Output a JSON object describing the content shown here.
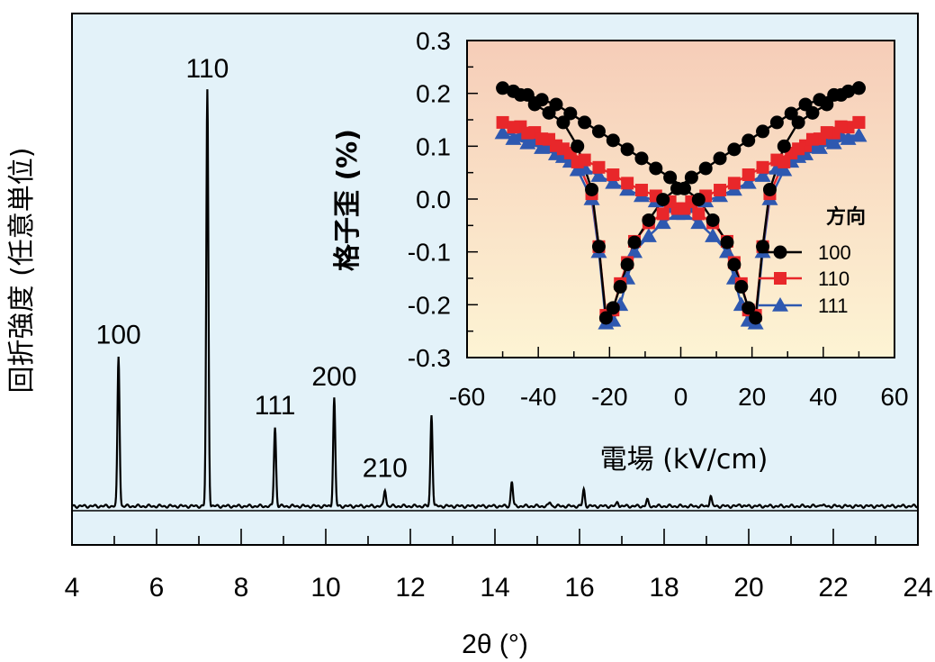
{
  "main": {
    "ylabel": "回折強度 (任意単位)",
    "xlabel": "2θ (°)",
    "x_ticks": [
      "4",
      "6",
      "8",
      "10",
      "12",
      "14",
      "16",
      "18",
      "20",
      "22",
      "24"
    ],
    "peak_labels": [
      "100",
      "110",
      "111",
      "200",
      "210"
    ]
  },
  "inset": {
    "ylabel": "格子歪 (%)",
    "xlabel": "電場 (kV/cm)",
    "x_ticks": [
      "-60",
      "-40",
      "-20",
      "0",
      "20",
      "40",
      "60"
    ],
    "y_ticks": [
      "0.3",
      "0.2",
      "0.1",
      "0.0",
      "-0.1",
      "-0.2",
      "-0.3"
    ],
    "legend_title": "方向",
    "legend": [
      "100",
      "110",
      "111"
    ]
  },
  "colors": {
    "main_bg": "#e3f2f9",
    "inset_top": "#f6cdb8",
    "inset_bottom": "#fdf4d4",
    "s100": "#000000",
    "s110": "#e8272a",
    "s111": "#2e58b0"
  },
  "chart_data": [
    {
      "type": "line",
      "title": "",
      "xlabel": "2θ (°)",
      "ylabel": "回折強度 (任意単位)",
      "xlim": [
        4,
        24
      ],
      "ylim": [
        0,
        1.05
      ],
      "grid": false,
      "peaks": [
        {
          "x": 5.1,
          "y": 0.36,
          "label": "100"
        },
        {
          "x": 7.2,
          "y": 1.0,
          "label": "110"
        },
        {
          "x": 8.8,
          "y": 0.19,
          "label": "111"
        },
        {
          "x": 10.2,
          "y": 0.26,
          "label": "200"
        },
        {
          "x": 11.4,
          "y": 0.04,
          "label": "210"
        },
        {
          "x": 12.5,
          "y": 0.22,
          "label": ""
        },
        {
          "x": 14.4,
          "y": 0.06,
          "label": ""
        },
        {
          "x": 15.3,
          "y": 0.01,
          "label": ""
        },
        {
          "x": 16.1,
          "y": 0.04,
          "label": ""
        },
        {
          "x": 16.9,
          "y": 0.01,
          "label": ""
        },
        {
          "x": 17.6,
          "y": 0.015,
          "label": ""
        },
        {
          "x": 19.1,
          "y": 0.025,
          "label": ""
        },
        {
          "x": 19.8,
          "y": 0.005,
          "label": ""
        },
        {
          "x": 21.7,
          "y": 0.005,
          "label": ""
        }
      ]
    },
    {
      "type": "line",
      "title": "",
      "xlabel": "電場 (kV/cm)",
      "ylabel": "格子歪 (%)",
      "xlim": [
        -60,
        60
      ],
      "ylim": [
        -0.3,
        0.3
      ],
      "grid": false,
      "legend_title": "方向",
      "legend_position": "right",
      "series": [
        {
          "name": "100",
          "marker": "circle",
          "x": [
            50,
            47,
            43,
            39,
            35,
            31,
            27,
            23,
            19,
            15,
            11,
            7,
            3,
            -1,
            -5,
            -9,
            -13,
            -15,
            -17,
            -19,
            -21,
            -23,
            -25,
            -29,
            -33,
            -37,
            -41,
            -45,
            -50,
            -47,
            -43,
            -39,
            -35,
            -31,
            -27,
            -23,
            -19,
            -15,
            -11,
            -7,
            -3,
            1,
            5,
            9,
            13,
            15,
            17,
            19,
            21,
            23,
            25,
            29,
            33,
            37,
            41,
            45,
            50
          ],
          "y": [
            0.21,
            0.204,
            0.197,
            0.188,
            0.179,
            0.162,
            0.145,
            0.128,
            0.111,
            0.094,
            0.077,
            0.058,
            0.041,
            0.02,
            -0.001,
            -0.04,
            -0.082,
            -0.124,
            -0.166,
            -0.206,
            -0.225,
            -0.09,
            0.018,
            0.1,
            0.145,
            0.163,
            0.179,
            0.197,
            0.21,
            0.204,
            0.197,
            0.188,
            0.179,
            0.162,
            0.145,
            0.128,
            0.111,
            0.094,
            0.077,
            0.058,
            0.041,
            0.02,
            -0.001,
            -0.04,
            -0.082,
            -0.124,
            -0.166,
            -0.206,
            -0.225,
            -0.09,
            0.018,
            0.1,
            0.145,
            0.163,
            0.179,
            0.197,
            0.21
          ]
        },
        {
          "name": "110",
          "marker": "square",
          "x": [
            50,
            47,
            43,
            39,
            35,
            31,
            27,
            23,
            19,
            15,
            11,
            7,
            3,
            -1,
            -5,
            -9,
            -13,
            -15,
            -17,
            -19,
            -21,
            -23,
            -25,
            -29,
            -33,
            -37,
            -41,
            -45,
            -50,
            -47,
            -43,
            -39,
            -35,
            -31,
            -27,
            -23,
            -19,
            -15,
            -11,
            -7,
            -3,
            1,
            5,
            9,
            13,
            15,
            17,
            19,
            21,
            23,
            25,
            29,
            33,
            37,
            41,
            45,
            50
          ],
          "y": [
            0.145,
            0.136,
            0.125,
            0.114,
            0.101,
            0.087,
            0.074,
            0.06,
            0.046,
            0.03,
            0.017,
            0.006,
            -0.005,
            -0.018,
            -0.028,
            -0.045,
            -0.08,
            -0.12,
            -0.16,
            -0.21,
            -0.22,
            -0.09,
            0.01,
            0.07,
            0.095,
            0.113,
            0.126,
            0.137,
            0.145,
            0.136,
            0.125,
            0.114,
            0.101,
            0.087,
            0.074,
            0.06,
            0.046,
            0.03,
            0.017,
            0.006,
            -0.005,
            -0.018,
            -0.028,
            -0.045,
            -0.08,
            -0.12,
            -0.16,
            -0.21,
            -0.22,
            -0.09,
            0.01,
            0.07,
            0.095,
            0.113,
            0.126,
            0.137,
            0.145
          ]
        },
        {
          "name": "111",
          "marker": "triangle",
          "x": [
            50,
            47,
            43,
            39,
            35,
            31,
            27,
            23,
            19,
            15,
            11,
            7,
            3,
            -1,
            -5,
            -9,
            -13,
            -15,
            -17,
            -19,
            -21,
            -23,
            -25,
            -29,
            -33,
            -37,
            -41,
            -45,
            -50,
            -47,
            -43,
            -39,
            -35,
            -31,
            -27,
            -23,
            -19,
            -15,
            -11,
            -7,
            -3,
            1,
            5,
            9,
            13,
            15,
            17,
            19,
            21,
            23,
            25,
            29,
            33,
            37,
            41,
            45,
            50
          ],
          "y": [
            0.12,
            0.114,
            0.106,
            0.097,
            0.085,
            0.071,
            0.058,
            0.044,
            0.031,
            0.018,
            0.006,
            -0.004,
            -0.015,
            -0.028,
            -0.045,
            -0.07,
            -0.1,
            -0.15,
            -0.2,
            -0.23,
            -0.235,
            -0.1,
            0.0,
            0.055,
            0.08,
            0.098,
            0.11,
            0.12,
            0.125,
            0.114,
            0.106,
            0.097,
            0.085,
            0.071,
            0.058,
            0.044,
            0.031,
            0.018,
            0.006,
            -0.004,
            -0.015,
            -0.028,
            -0.045,
            -0.07,
            -0.1,
            -0.15,
            -0.2,
            -0.23,
            -0.235,
            -0.1,
            0.0,
            0.055,
            0.08,
            0.098,
            0.11,
            0.12,
            0.12
          ]
        }
      ]
    }
  ]
}
